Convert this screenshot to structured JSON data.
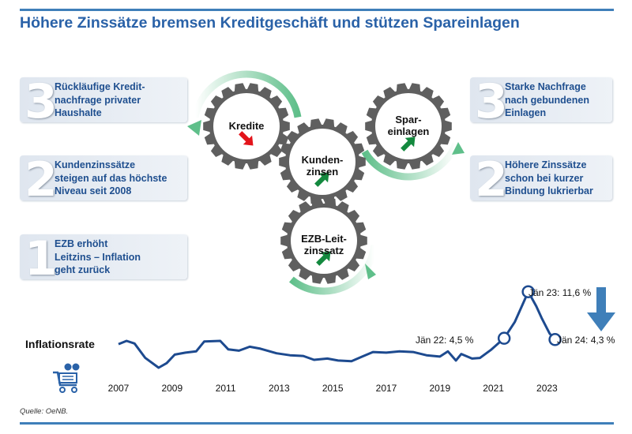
{
  "title": "Höhere Zinssätze bremsen Kreditgeschäft und stützen Spareinlagen",
  "left_boxes": [
    {
      "number": "3",
      "text": "Rückläufige Kredit-\nnachfrage privater\nHaushalte"
    },
    {
      "number": "2",
      "text": "Kundenzinssätze\nsteigen auf das höchste\nNiveau seit 2008"
    },
    {
      "number": "1",
      "text": "EZB erhöht\nLeitzins – Inflation\ngeht zurück"
    }
  ],
  "right_boxes": [
    {
      "number": "3",
      "text": "Starke Nachfrage\nnach gebundenen\nEinlagen"
    },
    {
      "number": "2",
      "text": "Höhere Zinssätze\nschon bei kurzer\nBindung lukrierbar"
    }
  ],
  "gears": [
    {
      "label": "Kredite",
      "trend": "down",
      "arrow_color": "#e3141b"
    },
    {
      "label": "Kunden-\nzinsen",
      "trend": "up",
      "arrow_color": "#13893e"
    },
    {
      "label": "Spar-\neinlagen",
      "trend": "up",
      "arrow_color": "#13893e"
    },
    {
      "label": "EZB-Leit-\nzinssatz",
      "trend": "up",
      "arrow_color": "#13893e"
    }
  ],
  "colors": {
    "title": "#2a62a8",
    "line": "#1d4a8f",
    "rule": "#3f7fb9",
    "gear": "#5f5f5f",
    "rotation_arrow": "#5fbf8a"
  },
  "chart_data": {
    "type": "line",
    "title": "Inflationsrate",
    "x_ticks": [
      "2007",
      "2009",
      "2011",
      "2013",
      "2015",
      "2017",
      "2019",
      "2021",
      "2023"
    ],
    "series": [
      {
        "points": [
          [
            2007.0,
            3.6
          ],
          [
            2007.3,
            4.1
          ],
          [
            2007.6,
            3.7
          ],
          [
            2008.0,
            1.5
          ],
          [
            2008.5,
            0.0
          ],
          [
            2008.8,
            0.7
          ],
          [
            2009.1,
            2.0
          ],
          [
            2009.5,
            2.3
          ],
          [
            2009.9,
            2.5
          ],
          [
            2010.2,
            4.0
          ],
          [
            2010.8,
            4.1
          ],
          [
            2011.1,
            2.8
          ],
          [
            2011.5,
            2.6
          ],
          [
            2011.9,
            3.2
          ],
          [
            2012.3,
            2.9
          ],
          [
            2012.9,
            2.2
          ],
          [
            2013.4,
            1.9
          ],
          [
            2013.9,
            1.8
          ],
          [
            2014.3,
            1.2
          ],
          [
            2014.8,
            1.4
          ],
          [
            2015.2,
            1.1
          ],
          [
            2015.7,
            1.0
          ],
          [
            2016.1,
            1.7
          ],
          [
            2016.5,
            2.4
          ],
          [
            2017.0,
            2.3
          ],
          [
            2017.5,
            2.5
          ],
          [
            2018.0,
            2.4
          ],
          [
            2018.5,
            1.9
          ],
          [
            2019.0,
            1.7
          ],
          [
            2019.3,
            2.5
          ],
          [
            2019.6,
            1.1
          ],
          [
            2019.8,
            2.1
          ],
          [
            2020.2,
            1.4
          ],
          [
            2020.5,
            1.5
          ],
          [
            2020.9,
            2.7
          ],
          [
            2021.4,
            4.5
          ],
          [
            2021.8,
            7.0
          ],
          [
            2022.3,
            11.6
          ],
          [
            2022.6,
            9.4
          ],
          [
            2022.8,
            7.6
          ],
          [
            2023.1,
            5.2
          ],
          [
            2023.3,
            4.3
          ]
        ]
      }
    ],
    "annotations": [
      {
        "text": "Jän 22: 4,5 %",
        "x": 2021.4,
        "y": 4.5
      },
      {
        "text": "Jän 23: 11,6 %",
        "x": 2022.3,
        "y": 11.6
      },
      {
        "text": "Jän 24: 4,3 %",
        "x": 2023.3,
        "y": 4.3
      }
    ],
    "trend": "down"
  },
  "source": "Quelle: OeNB."
}
